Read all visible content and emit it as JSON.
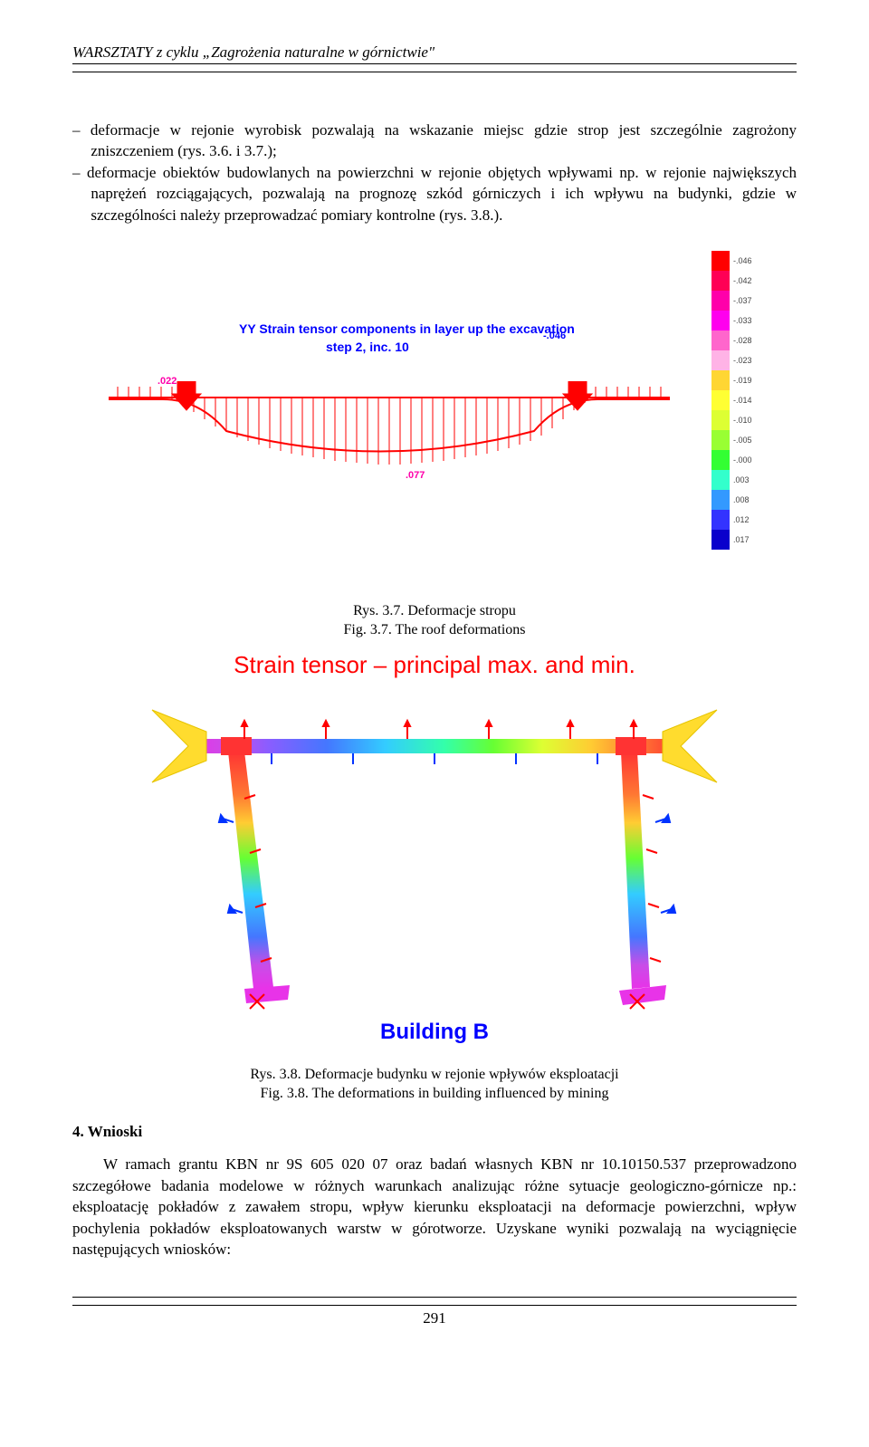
{
  "header": {
    "series_title": "WARSZTATY z cyklu „Zagrożenia naturalne w górnictwie\""
  },
  "body": {
    "para1": "deformacje w rejonie wyrobisk pozwalają na wskazanie miejsc gdzie strop jest szczególnie zagrożony zniszczeniem (rys. 3.6. i 3.7.);",
    "para2": "deformacje obiektów budowlanych na powierzchni w rejonie objętych wpływami np. w rejonie największych naprężeń rozciągających, pozwalają na prognozę szkód górniczych i ich wpływu na budynki, gdzie w szczególności należy przeprowadzać pomiary kontrolne (rys. 3.8.)."
  },
  "fig1": {
    "plot_title": "YY Strain tensor components in layer up the excavation",
    "plot_sub": "step 2, inc. 10",
    "val_top": "-.046",
    "val_left": ".022",
    "val_mid": ".077",
    "caption_line1": "Rys. 3.7. Deformacje stropu",
    "caption_line2": "Fig. 3.7. The roof deformations",
    "legend": [
      {
        "c": "#ff0000",
        "v": "-.046"
      },
      {
        "c": "#ff0055",
        "v": "-.042"
      },
      {
        "c": "#ff00aa",
        "v": "-.037"
      },
      {
        "c": "#ff00ee",
        "v": "-.033"
      },
      {
        "c": "#ff66cc",
        "v": "-.028"
      },
      {
        "c": "#ffb3e6",
        "v": "-.023"
      },
      {
        "c": "#ffd633",
        "v": "-.019"
      },
      {
        "c": "#ffff33",
        "v": "-.014"
      },
      {
        "c": "#ddff33",
        "v": "-.010"
      },
      {
        "c": "#99ff33",
        "v": "-.005"
      },
      {
        "c": "#33ff33",
        "v": "-.000"
      },
      {
        "c": "#33ffcc",
        "v": ".003"
      },
      {
        "c": "#3399ff",
        "v": ".008"
      },
      {
        "c": "#3333ff",
        "v": ".012"
      },
      {
        "c": "#0a00cc",
        "v": ".017"
      }
    ]
  },
  "fig2": {
    "title": "Strain tensor – principal max. and min.",
    "building_label": "Building B",
    "caption_line1": "Rys. 3.8. Deformacje budynku w rejonie wpływów eksploatacji",
    "caption_line2": "Fig. 3.8. The deformations in building influenced by mining",
    "gradient_stops": [
      {
        "o": 0.0,
        "c": "#e833e8"
      },
      {
        "o": 0.08,
        "c": "#c84de8"
      },
      {
        "o": 0.16,
        "c": "#8a5dff"
      },
      {
        "o": 0.28,
        "c": "#4477ff"
      },
      {
        "o": 0.4,
        "c": "#33ccff"
      },
      {
        "o": 0.52,
        "c": "#33ffaa"
      },
      {
        "o": 0.62,
        "c": "#66ff33"
      },
      {
        "o": 0.72,
        "c": "#ddff33"
      },
      {
        "o": 0.82,
        "c": "#ffcc33"
      },
      {
        "o": 0.92,
        "c": "#ff7733"
      },
      {
        "o": 1.0,
        "c": "#ff3333"
      }
    ],
    "gradient_vert": [
      {
        "o": 0.0,
        "c": "#ff3333"
      },
      {
        "o": 0.18,
        "c": "#ff7733"
      },
      {
        "o": 0.3,
        "c": "#ffcc33"
      },
      {
        "o": 0.45,
        "c": "#66ff33"
      },
      {
        "o": 0.6,
        "c": "#33ccff"
      },
      {
        "o": 0.78,
        "c": "#4477ff"
      },
      {
        "o": 0.9,
        "c": "#c84de8"
      },
      {
        "o": 1.0,
        "c": "#e833e8"
      }
    ]
  },
  "section4": {
    "heading": "4. Wnioski",
    "para": "W ramach grantu KBN nr 9S 605 020 07 oraz badań własnych KBN nr 10.10150.537 przeprowadzono szczegółowe badania modelowe w różnych warunkach analizując różne sytuacje geologiczno-górnicze np.: eksploatację pokładów z zawałem stropu, wpływ kierunku eksploatacji na deformacje powierzchni, wpływ pochylenia pokładów eksploatowanych warstw w górotworze. Uzyskane wyniki pozwalają na wyciągnięcie następujących wniosków:"
  },
  "footer": {
    "page_number": "291"
  }
}
